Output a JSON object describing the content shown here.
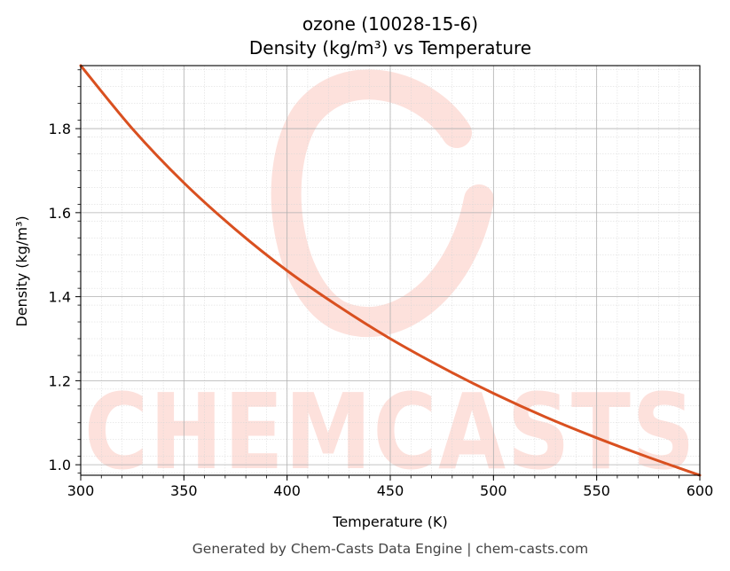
{
  "chart_data": {
    "type": "line",
    "title": "ozone (10028-15-6)",
    "subtitle": "Density (kg/m³) vs Temperature",
    "xlabel": "Temperature (K)",
    "ylabel": "Density (kg/m³)",
    "xlim": [
      300,
      600
    ],
    "ylim": [
      0.975,
      1.95
    ],
    "xticks": [
      300,
      350,
      400,
      450,
      500,
      550,
      600
    ],
    "yticks": [
      1.0,
      1.2,
      1.4,
      1.6,
      1.8
    ],
    "grid": true,
    "series": [
      {
        "color": "#d95020",
        "x": [
          300,
          325,
          350,
          375,
          400,
          425,
          450,
          475,
          500,
          525,
          550,
          575,
          600
        ],
        "y": [
          1.95,
          1.8,
          1.671,
          1.56,
          1.462,
          1.377,
          1.3,
          1.232,
          1.17,
          1.114,
          1.064,
          1.018,
          0.975
        ]
      }
    ]
  },
  "watermark": "CHEMCASTS",
  "footer": "Generated by Chem-Casts Data Engine | chem-casts.com"
}
